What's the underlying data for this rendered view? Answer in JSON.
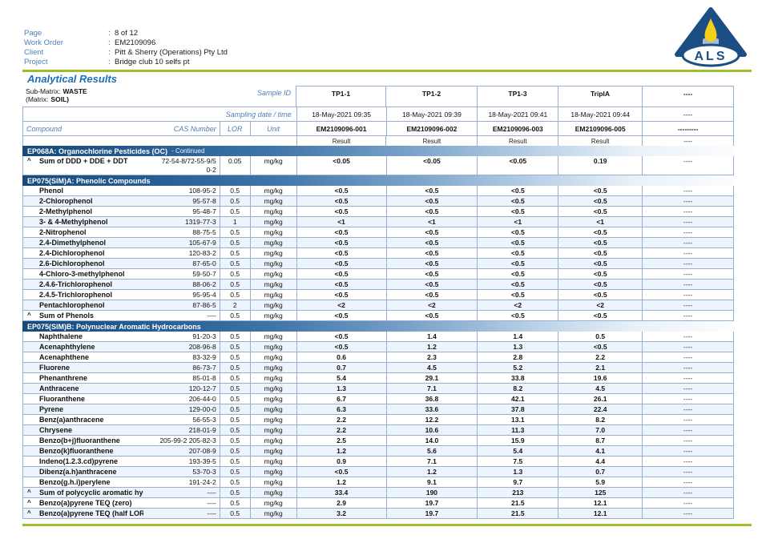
{
  "meta": {
    "page_label": "Page",
    "page_value": "8 of 12",
    "work_order_label": "Work Order",
    "work_order_value": "EM2109096",
    "client_label": "Client",
    "client_value": "Pitt & Sherry (Operations) Pty Ltd",
    "project_label": "Project",
    "project_value": "Bridge club 10 selfs pt",
    "separator": ":"
  },
  "logo": {
    "text": "ALS"
  },
  "title": "Analytical Results",
  "table": {
    "sub_matrix_label": "Sub-Matrix:",
    "sub_matrix_value": "WASTE",
    "matrix_label": "(Matrix:",
    "matrix_value": "SOIL)",
    "sample_id_label": "Sample ID",
    "sampling_label": "Sampling date / time",
    "compound_label": "Compound",
    "cas_label": "CAS Number",
    "lor_label": "LOR",
    "unit_label": "Unit",
    "columns": [
      {
        "id": "TP1-1",
        "datetime": "18-May-2021 09:35",
        "code": "EM2109096-001",
        "result_label": "Result"
      },
      {
        "id": "TP1-2",
        "datetime": "18-May-2021 09:39",
        "code": "EM2109096-002",
        "result_label": "Result"
      },
      {
        "id": "TP1-3",
        "datetime": "18-May-2021 09:41",
        "code": "EM2109096-003",
        "result_label": "Result"
      },
      {
        "id": "TripIA",
        "datetime": "18-May-2021 09:44",
        "code": "EM2109096-005",
        "result_label": "Result"
      },
      {
        "id": "----",
        "datetime": "----",
        "code": "---------",
        "result_label": "----"
      }
    ],
    "sections": [
      {
        "title": "EP068A: Organochlorine Pesticides (OC)",
        "suffix": "- Continued",
        "rows": [
          {
            "prefix": "^",
            "name": "Sum of DDD + DDE + DDT",
            "cas": "72-54-8/72-55-9/5\n0-2",
            "lor": "0.05",
            "unit": "mg/kg",
            "tall": true,
            "values": [
              "<0.05",
              "<0.05",
              "<0.05",
              "0.19",
              "----"
            ]
          }
        ]
      },
      {
        "title": "EP075(SIM)A: Phenolic Compounds",
        "suffix": "",
        "rows": [
          {
            "name": "Phenol",
            "cas": "108-95-2",
            "lor": "0.5",
            "unit": "mg/kg",
            "values": [
              "<0.5",
              "<0.5",
              "<0.5",
              "<0.5",
              "----"
            ]
          },
          {
            "name": "2-Chlorophenol",
            "cas": "95-57-8",
            "lor": "0.5",
            "unit": "mg/kg",
            "values": [
              "<0.5",
              "<0.5",
              "<0.5",
              "<0.5",
              "----"
            ]
          },
          {
            "name": "2-Methylphenol",
            "cas": "95-48-7",
            "lor": "0.5",
            "unit": "mg/kg",
            "values": [
              "<0.5",
              "<0.5",
              "<0.5",
              "<0.5",
              "----"
            ]
          },
          {
            "name": "3- & 4-Methylphenol",
            "cas": "1319-77-3",
            "lor": "1",
            "unit": "mg/kg",
            "values": [
              "<1",
              "<1",
              "<1",
              "<1",
              "----"
            ]
          },
          {
            "name": "2-Nitrophenol",
            "cas": "88-75-5",
            "lor": "0.5",
            "unit": "mg/kg",
            "values": [
              "<0.5",
              "<0.5",
              "<0.5",
              "<0.5",
              "----"
            ]
          },
          {
            "name": "2.4-Dimethylphenol",
            "cas": "105-67-9",
            "lor": "0.5",
            "unit": "mg/kg",
            "values": [
              "<0.5",
              "<0.5",
              "<0.5",
              "<0.5",
              "----"
            ]
          },
          {
            "name": "2.4-Dichlorophenol",
            "cas": "120-83-2",
            "lor": "0.5",
            "unit": "mg/kg",
            "values": [
              "<0.5",
              "<0.5",
              "<0.5",
              "<0.5",
              "----"
            ]
          },
          {
            "name": "2.6-Dichlorophenol",
            "cas": "87-65-0",
            "lor": "0.5",
            "unit": "mg/kg",
            "values": [
              "<0.5",
              "<0.5",
              "<0.5",
              "<0.5",
              "----"
            ]
          },
          {
            "name": "4-Chloro-3-methylphenol",
            "cas": "59-50-7",
            "lor": "0.5",
            "unit": "mg/kg",
            "values": [
              "<0.5",
              "<0.5",
              "<0.5",
              "<0.5",
              "----"
            ]
          },
          {
            "name": "2.4.6-Trichlorophenol",
            "cas": "88-06-2",
            "lor": "0.5",
            "unit": "mg/kg",
            "values": [
              "<0.5",
              "<0.5",
              "<0.5",
              "<0.5",
              "----"
            ]
          },
          {
            "name": "2.4.5-Trichlorophenol",
            "cas": "95-95-4",
            "lor": "0.5",
            "unit": "mg/kg",
            "values": [
              "<0.5",
              "<0.5",
              "<0.5",
              "<0.5",
              "----"
            ]
          },
          {
            "name": "Pentachlorophenol",
            "cas": "87-86-5",
            "lor": "2",
            "unit": "mg/kg",
            "values": [
              "<2",
              "<2",
              "<2",
              "<2",
              "----"
            ]
          },
          {
            "prefix": "^",
            "name": "Sum of Phenols",
            "cas": "----",
            "lor": "0.5",
            "unit": "mg/kg",
            "values": [
              "<0.5",
              "<0.5",
              "<0.5",
              "<0.5",
              "----"
            ]
          }
        ]
      },
      {
        "title": "EP075(SIM)B: Polynuclear Aromatic Hydrocarbons",
        "suffix": "",
        "rows": [
          {
            "name": "Naphthalene",
            "cas": "91-20-3",
            "lor": "0.5",
            "unit": "mg/kg",
            "values": [
              "<0.5",
              "1.4",
              "1.4",
              "0.5",
              "----"
            ]
          },
          {
            "name": "Acenaphthylene",
            "cas": "208-96-8",
            "lor": "0.5",
            "unit": "mg/kg",
            "values": [
              "<0.5",
              "1.2",
              "1.3",
              "<0.5",
              "----"
            ]
          },
          {
            "name": "Acenaphthene",
            "cas": "83-32-9",
            "lor": "0.5",
            "unit": "mg/kg",
            "values": [
              "0.6",
              "2.3",
              "2.8",
              "2.2",
              "----"
            ]
          },
          {
            "name": "Fluorene",
            "cas": "86-73-7",
            "lor": "0.5",
            "unit": "mg/kg",
            "values": [
              "0.7",
              "4.5",
              "5.2",
              "2.1",
              "----"
            ]
          },
          {
            "name": "Phenanthrene",
            "cas": "85-01-8",
            "lor": "0.5",
            "unit": "mg/kg",
            "values": [
              "5.4",
              "29.1",
              "33.8",
              "19.6",
              "----"
            ]
          },
          {
            "name": "Anthracene",
            "cas": "120-12-7",
            "lor": "0.5",
            "unit": "mg/kg",
            "values": [
              "1.3",
              "7.1",
              "8.2",
              "4.5",
              "----"
            ]
          },
          {
            "name": "Fluoranthene",
            "cas": "206-44-0",
            "lor": "0.5",
            "unit": "mg/kg",
            "values": [
              "6.7",
              "36.8",
              "42.1",
              "26.1",
              "----"
            ]
          },
          {
            "name": "Pyrene",
            "cas": "129-00-0",
            "lor": "0.5",
            "unit": "mg/kg",
            "values": [
              "6.3",
              "33.6",
              "37.8",
              "22.4",
              "----"
            ]
          },
          {
            "name": "Benz(a)anthracene",
            "cas": "56-55-3",
            "lor": "0.5",
            "unit": "mg/kg",
            "values": [
              "2.2",
              "12.2",
              "13.1",
              "8.2",
              "----"
            ]
          },
          {
            "name": "Chrysene",
            "cas": "218-01-9",
            "lor": "0.5",
            "unit": "mg/kg",
            "values": [
              "2.2",
              "10.6",
              "11.3",
              "7.0",
              "----"
            ]
          },
          {
            "name": "Benzo(b+j)fluoranthene",
            "cas": "205-99-2 205-82-3",
            "lor": "0.5",
            "unit": "mg/kg",
            "values": [
              "2.5",
              "14.0",
              "15.9",
              "8.7",
              "----"
            ]
          },
          {
            "name": "Benzo(k)fluoranthene",
            "cas": "207-08-9",
            "lor": "0.5",
            "unit": "mg/kg",
            "values": [
              "1.2",
              "5.6",
              "5.4",
              "4.1",
              "----"
            ]
          },
          {
            "name": "Indeno(1.2.3.cd)pyrene",
            "cas": "193-39-5",
            "lor": "0.5",
            "unit": "mg/kg",
            "values": [
              "0.9",
              "7.1",
              "7.5",
              "4.4",
              "----"
            ]
          },
          {
            "name": "Dibenz(a.h)anthracene",
            "cas": "53-70-3",
            "lor": "0.5",
            "unit": "mg/kg",
            "values": [
              "<0.5",
              "1.2",
              "1.3",
              "0.7",
              "----"
            ]
          },
          {
            "name": "Benzo(g.h.i)perylene",
            "cas": "191-24-2",
            "lor": "0.5",
            "unit": "mg/kg",
            "values": [
              "1.2",
              "9.1",
              "9.7",
              "5.9",
              "----"
            ]
          },
          {
            "prefix": "^",
            "name": "Sum of polycyclic aromatic hydrocarbons",
            "cas": "----",
            "lor": "0.5",
            "unit": "mg/kg",
            "values": [
              "33.4",
              "190",
              "213",
              "125",
              "----"
            ]
          },
          {
            "prefix": "^",
            "name": "Benzo(a)pyrene TEQ (zero)",
            "cas": "----",
            "lor": "0.5",
            "unit": "mg/kg",
            "values": [
              "2.9",
              "19.7",
              "21.5",
              "12.1",
              "----"
            ]
          },
          {
            "prefix": "^",
            "name": "Benzo(a)pyrene TEQ (half LOR)",
            "cas": "----",
            "lor": "0.5",
            "unit": "mg/kg",
            "values": [
              "3.2",
              "19.7",
              "21.5",
              "12.1",
              "----"
            ]
          }
        ]
      }
    ]
  }
}
